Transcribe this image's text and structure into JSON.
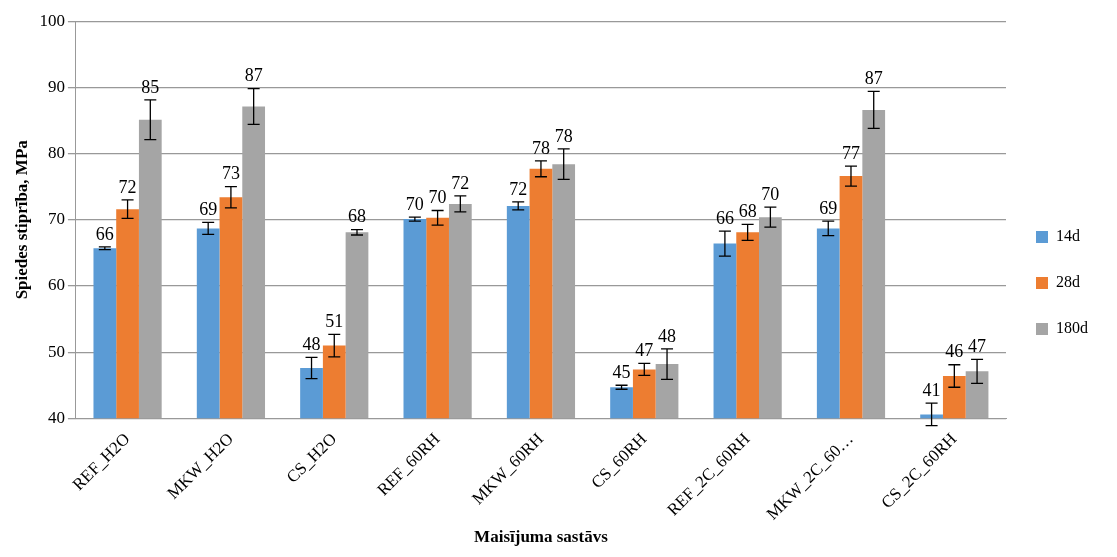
{
  "chart_data": {
    "type": "bar",
    "xlabel": "Maisījuma sastāvs",
    "ylabel": "Spiedes stiprība, MPa",
    "categories": [
      "REF_H2O",
      "MKW_H2O",
      "CS_H2O",
      "REF_60RH",
      "MKW_60RH",
      "CS_60RH",
      "REF_2C_60RH",
      "MKW_2C_60…",
      "CS_2C_60RH"
    ],
    "series": [
      {
        "name": "14d",
        "color": "#5b9bd5",
        "values": [
          65.7,
          68.7,
          47.6,
          70.1,
          72.1,
          44.7,
          66.4,
          68.7,
          40.6
        ],
        "errors": [
          0.2,
          0.9,
          1.6,
          0.3,
          0.6,
          0.3,
          1.9,
          1.1,
          1.7
        ],
        "value_labels": [
          "66",
          "69",
          "48",
          "70",
          "72",
          "45",
          "66",
          "69",
          "41"
        ]
      },
      {
        "name": "28d",
        "color": "#ed7d31",
        "values": [
          71.6,
          73.4,
          51.0,
          70.3,
          77.7,
          47.4,
          68.1,
          76.6,
          46.4
        ],
        "errors": [
          1.4,
          1.6,
          1.7,
          1.1,
          1.2,
          0.9,
          1.2,
          1.5,
          1.7
        ],
        "value_labels": [
          "72",
          "73",
          "51",
          "70",
          "78",
          "47",
          "68",
          "77",
          "46"
        ]
      },
      {
        "name": "180d",
        "color": "#a5a5a5",
        "values": [
          85.1,
          87.1,
          68.1,
          72.4,
          78.4,
          48.2,
          70.4,
          86.6,
          47.1
        ],
        "errors": [
          3.0,
          2.7,
          0.4,
          1.2,
          2.3,
          2.3,
          1.5,
          2.8,
          1.8
        ],
        "value_labels": [
          "85",
          "87",
          "68",
          "72",
          "78",
          "48",
          "70",
          "87",
          "47"
        ]
      }
    ],
    "ylim": [
      40,
      100
    ],
    "yticks": [
      40,
      50,
      60,
      70,
      80,
      90,
      100
    ],
    "grid": "y",
    "legend": "right"
  }
}
